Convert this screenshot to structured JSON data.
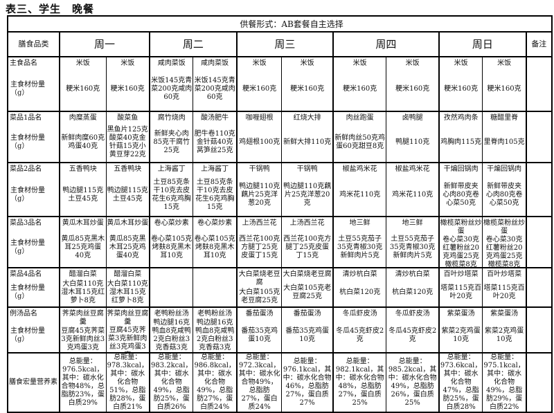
{
  "title": "表三、学生　晚餐",
  "banner": "供餐形式：AB套餐自主选择",
  "header": {
    "category_label": "膳食品类",
    "days": [
      "周一",
      "周二",
      "周三",
      "周四",
      "周日"
    ],
    "remark_label": "备注"
  },
  "rows": [
    {
      "name_label": "主食品名",
      "amount_label": "主食材份量（g）",
      "cells": [
        {
          "name": "米饭",
          "amount": "粳米160克"
        },
        {
          "name": "米饭",
          "amount": "粳米160克"
        },
        {
          "name": "咸肉菜饭",
          "amount": "米饭145克青菜200克咸肉60克"
        },
        {
          "name": "咸肉菜饭",
          "amount": "米饭145克青菜200克咸肉60克"
        },
        {
          "name": "米饭",
          "amount": "粳米160克"
        },
        {
          "name": "米饭",
          "amount": "粳米160克"
        },
        {
          "name": "米饭",
          "amount": "粳米160克"
        },
        {
          "name": "米饭",
          "amount": "粳米160克"
        },
        {
          "name": "米饭",
          "amount": "粳米160克"
        },
        {
          "name": "米饭",
          "amount": "粳米160克"
        }
      ]
    },
    {
      "name_label": "菜品1品名",
      "amount_label": "主食材份量（g）",
      "cells": [
        {
          "name": "肉糜蒸蛋",
          "amount": "新鲜肉糜60克鸡蛋40克"
        },
        {
          "name": "酸菜鱼",
          "amount": "黑鱼片125克酸菜40克金针菇15克小黄豆芽22克"
        },
        {
          "name": "腐竹烧肉",
          "amount": "新鲜夹心肉85克干腐竹25克"
        },
        {
          "name": "酸汤肥牛",
          "amount": "肥牛卷110克金针菇40克莴笋丝25克"
        },
        {
          "name": "咖喱翅根",
          "amount": "鸡翅根100克"
        },
        {
          "name": "红烧大排",
          "amount": "新鲜大排110克"
        },
        {
          "name": "肉丝跑蛋",
          "amount": "新鲜肉丝50克鸡蛋60克甜豆8克"
        },
        {
          "name": "卤鸭腿",
          "amount": "鸭腿110克"
        },
        {
          "name": "孜然鸡肉条",
          "amount": "鸡胸肉115克"
        },
        {
          "name": "糖醋里脊",
          "amount": "里脊肉105克"
        }
      ]
    },
    {
      "name_label": "菜品2品名",
      "amount_label": "主食材份量（g）",
      "cells": [
        {
          "name": "五香鸭块",
          "amount": "鸭边腿115克土豆45克"
        },
        {
          "name": "五香鸭块",
          "amount": "鸭边腿115克土豆45克"
        },
        {
          "name": "上海酱丁",
          "amount": "土豆85克条干10克去皮花生6克鸡胸15克"
        },
        {
          "name": "上海酱丁",
          "amount": "土豆85克条干10克去皮花生6克鸡胸15克"
        },
        {
          "name": "干锅鸭",
          "amount": "鸭边腿110克藕片25克洋葱20克"
        },
        {
          "name": "干锅鸭",
          "amount": "鸭边腿110克藕片25克洋葱20克"
        },
        {
          "name": "椒盐鸡米花",
          "amount": "鸡米花110克"
        },
        {
          "name": "椒盐鸡米花",
          "amount": "鸡米花110克"
        },
        {
          "name": "干煸回锅肉",
          "amount": "新鲜带皮夹心肉80克卷心菜50克"
        },
        {
          "name": "干煸回锅肉",
          "amount": "新鲜带皮夹心肉80克卷心菜50克"
        }
      ]
    },
    {
      "name_label": "菜品3品名",
      "amount_label": "主食材份量（g）",
      "cells": [
        {
          "name": "黄瓜木耳炒蛋",
          "amount": "黄瓜85克黑木耳25克鸡蛋40克"
        },
        {
          "name": "黄瓜木耳炒蛋",
          "amount": "黄瓜85克黑木耳25克鸡蛋40克"
        },
        {
          "name": "卷心菜炒素",
          "amount": "卷心菜105克烤麸8克黑木耳10克"
        },
        {
          "name": "卷心菜炒素",
          "amount": "卷心菜105克烤麸8克黑木耳10克"
        },
        {
          "name": "上汤西兰花",
          "amount": "西兰花100克方腿丁25克皮蛋丁15克"
        },
        {
          "name": "上汤西兰花",
          "amount": "西兰花100克方腿丁25克皮蛋丁15克"
        },
        {
          "name": "地三鲜",
          "amount": "土豆55克茄子35克青椒30克新鲜肉片5克"
        },
        {
          "name": "地三鲜",
          "amount": "土豆55克茄子35克青椒30克新鲜肉片5克"
        },
        {
          "name": "橄榄菜粉丝炒蛋",
          "amount": "卷心菜30克红薯粉丝20克鸡蛋25克橄榄菜8克"
        },
        {
          "name": "橄榄菜粉丝炒蛋",
          "amount": "卷心菜30克红薯粉丝20克鸡蛋25克橄榄菜8克"
        }
      ]
    },
    {
      "name_label": "菜品4品名",
      "amount_label": "主食材份量（g）",
      "cells": [
        {
          "name": "醋溜白菜",
          "amount": "大白菜110克湿木耳15克红萝卜8克"
        },
        {
          "name": "醋溜白菜",
          "amount": "大白菜110克湿木耳15克红萝卜8克"
        },
        {
          "name": "",
          "amount": ""
        },
        {
          "name": "",
          "amount": ""
        },
        {
          "name": "大白菜烧老豆腐",
          "amount": "大白菜105克老豆腐25克"
        },
        {
          "name": "大白菜烧老豆腐",
          "amount": "大白菜105克老豆腐25克"
        },
        {
          "name": "清炒杭白菜",
          "amount": "杭白菜120克"
        },
        {
          "name": "清炒杭白菜",
          "amount": "杭白菜120克"
        },
        {
          "name": "百叶炒塔菜",
          "amount": "塔菜115克百叶20克"
        },
        {
          "name": "百叶炒塔菜",
          "amount": "塔菜115克百叶20克"
        }
      ]
    },
    {
      "name_label": "例汤品名",
      "amount_label": "主食材份量（g）",
      "cells": [
        {
          "name": "荠菜肉丝豆腐羹",
          "amount": "豆腐45克荠菜3克新鲜肉丝3克鸡蛋3克"
        },
        {
          "name": "荠菜肉丝豆腐羹",
          "amount": "豆腐45克荠菜3克新鲜肉丝3克鸡蛋3克"
        },
        {
          "name": "老鸭粉丝汤",
          "amount": "鸭边腿16克鸭血8克咸鸭2克白粉丝3克香菇3克"
        },
        {
          "name": "老鸭粉丝汤",
          "amount": "鸭边腿16克鸭血8克咸鸭2克白粉丝3克香菇3克"
        },
        {
          "name": "番茄蛋汤",
          "amount": "番茄35克鸡蛋10克"
        },
        {
          "name": "番茄蛋汤",
          "amount": "番茄35克鸡蛋10克"
        },
        {
          "name": "冬瓜虾皮汤",
          "amount": "冬瓜45克虾皮2克"
        },
        {
          "name": "冬瓜虾皮汤",
          "amount": "冬瓜45克虾皮2克"
        },
        {
          "name": "紫菜蛋汤",
          "amount": "紫菜2克鸡蛋10克"
        },
        {
          "name": "紫菜蛋汤",
          "amount": "紫菜2克鸡蛋10克"
        }
      ]
    }
  ],
  "nutrition": {
    "label": "膳食宏量营养素",
    "cells": [
      "总能量：976.5kcal，其中：碳水化合物48%，总脂肪23%，蛋白质29%",
      "总能量：978.3kcal，其中：碳水化合物51%，总脂肪28%，蛋白质21%",
      "总能量：983.2kcal，其中：碳水化合物49%，总脂肪25%，蛋白质26%",
      "总能量：986.8kcal，其中：碳水化合物49%，总脂肪27%，蛋白质24%",
      "总能量：972.3kcal，其中：碳水化合物49%，总脂肪27%，蛋白质24%",
      "总能量：976.1kcal，其中：碳水化合物46%，总脂肪27%，蛋白质27%",
      "总能量：982.1kcal，其中：碳水化合物48%，总脂肪27%，蛋白质25%",
      "总能量：985.2kcal，其中：碳水化合物49%，总脂肪26%，蛋白质25%",
      "总能量：973.6kcal，其中：碳水化合物47%，总脂肪25%，蛋白质28%",
      "总能量：975.1kcal，其中：碳水化合物49%，总脂肪29%，蛋白质22%"
    ]
  }
}
